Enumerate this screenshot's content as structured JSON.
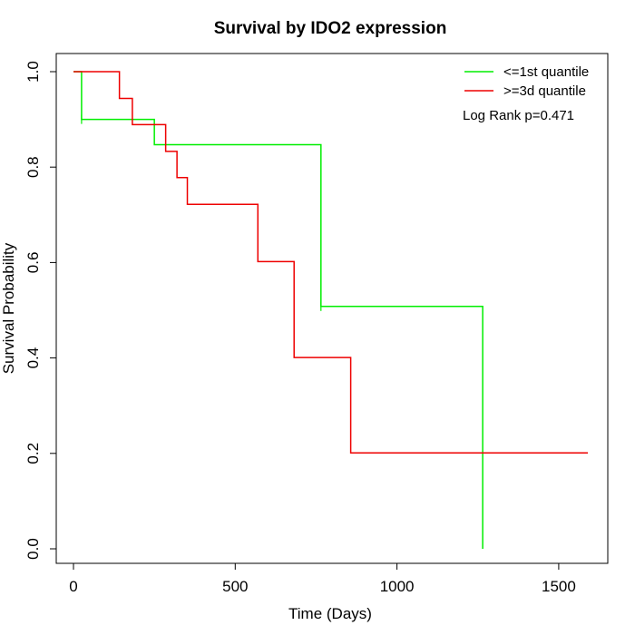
{
  "chart_data": {
    "type": "line",
    "title": "Survival by IDO2 expression",
    "xlabel": "Time (Days)",
    "ylabel": "Survival Probability",
    "xlim": [
      0,
      1590
    ],
    "ylim": [
      0,
      1.0
    ],
    "x_ticks": [
      0,
      500,
      1000,
      1500
    ],
    "x_tick_labels": [
      "0",
      "500",
      "1000",
      "1500"
    ],
    "y_ticks": [
      0.0,
      0.2,
      0.4,
      0.6,
      0.8,
      1.0
    ],
    "y_tick_labels": [
      "0.0",
      "0.2",
      "0.4",
      "0.6",
      "0.8",
      "1.0"
    ],
    "grid": false,
    "legend_position": "top-right",
    "annotation": "Log Rank p=0.471",
    "series": [
      {
        "name": "<=1st quantile",
        "color": "#00ee00",
        "step_x": [
          0,
          25,
          250,
          765,
          1265,
          1265
        ],
        "step_y": [
          1.0,
          0.9,
          0.847,
          0.508,
          0.508,
          0.0
        ],
        "censor_x": [
          25,
          765
        ]
      },
      {
        "name": ">=3d quantile",
        "color": "#ee0000",
        "step_x": [
          0,
          142,
          182,
          285,
          320,
          352,
          570,
          682,
          857,
          1590
        ],
        "step_y": [
          1.0,
          0.944,
          0.889,
          0.833,
          0.778,
          0.722,
          0.602,
          0.401,
          0.201,
          0.201
        ],
        "censor_x": []
      }
    ]
  }
}
